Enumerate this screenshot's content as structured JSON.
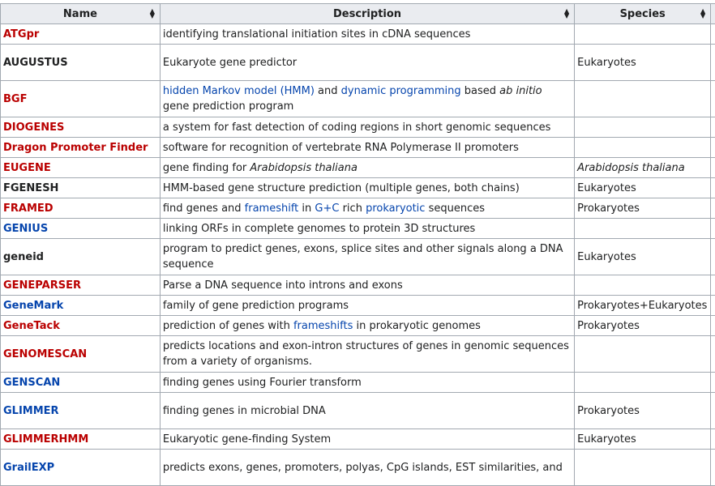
{
  "headers": {
    "name": "Name",
    "description": "Description",
    "species": "Species"
  },
  "rows": [
    {
      "name": "ATGpr",
      "color": "red",
      "desc": [
        {
          "t": "identifying translational initiation sites in cDNA sequences"
        }
      ],
      "species": "",
      "tall": false
    },
    {
      "name": "AUGUSTUS",
      "color": "black",
      "desc": [
        {
          "t": "Eukaryote gene predictor"
        }
      ],
      "species": "Eukaryotes",
      "tall": true
    },
    {
      "name": "BGF",
      "color": "red",
      "desc": [
        {
          "t": "hidden Markov model (HMM)",
          "link": true
        },
        {
          "t": " and "
        },
        {
          "t": "dynamic programming",
          "link": true
        },
        {
          "t": " based "
        },
        {
          "t": "ab initio",
          "italic": true
        },
        {
          "t": " gene prediction program"
        }
      ],
      "species": "",
      "tall": true
    },
    {
      "name": "DIOGENES",
      "color": "red",
      "desc": [
        {
          "t": "a system for fast detection of coding regions in short genomic sequences"
        }
      ],
      "species": "",
      "tall": false
    },
    {
      "name": "Dragon Promoter Finder",
      "color": "red",
      "desc": [
        {
          "t": "software for recognition of vertebrate RNA Polymerase II promoters"
        }
      ],
      "species": "",
      "tall": false
    },
    {
      "name": "EUGENE",
      "color": "red",
      "desc": [
        {
          "t": "gene finding for "
        },
        {
          "t": "Arabidopsis thaliana",
          "italic": true
        }
      ],
      "species": "Arabidopsis thaliana",
      "speciesItalic": true,
      "tall": false
    },
    {
      "name": "FGENESH",
      "color": "black",
      "desc": [
        {
          "t": "HMM-based gene structure prediction (multiple genes, both chains)"
        }
      ],
      "species": "Eukaryotes",
      "tall": false
    },
    {
      "name": "FRAMED",
      "color": "red",
      "desc": [
        {
          "t": "find genes and "
        },
        {
          "t": "frameshift",
          "link": true
        },
        {
          "t": " in "
        },
        {
          "t": "G+C",
          "link": true
        },
        {
          "t": " rich "
        },
        {
          "t": "prokaryotic",
          "link": true
        },
        {
          "t": " sequences"
        }
      ],
      "species": "Prokaryotes",
      "tall": false
    },
    {
      "name": "GENIUS",
      "color": "blue",
      "desc": [
        {
          "t": "linking ORFs in complete genomes to protein 3D structures"
        }
      ],
      "species": "",
      "tall": false
    },
    {
      "name": "geneid",
      "color": "black",
      "desc": [
        {
          "t": "program to predict genes, exons, splice sites and other signals along a DNA sequence"
        }
      ],
      "species": "Eukaryotes",
      "tall": true
    },
    {
      "name": "GENEPARSER",
      "color": "red",
      "desc": [
        {
          "t": "Parse a DNA sequence into introns and exons"
        }
      ],
      "species": "",
      "tall": false
    },
    {
      "name": "GeneMark",
      "color": "blue",
      "desc": [
        {
          "t": "family of gene prediction programs"
        }
      ],
      "species": "Prokaryotes+Eukaryotes",
      "tall": false
    },
    {
      "name": "GeneTack",
      "color": "red",
      "desc": [
        {
          "t": "prediction of genes with "
        },
        {
          "t": "frameshifts",
          "link": true
        },
        {
          "t": " in prokaryotic genomes"
        }
      ],
      "species": "Prokaryotes",
      "tall": false
    },
    {
      "name": "GENOMESCAN",
      "color": "red",
      "desc": [
        {
          "t": "predicts locations and exon-intron structures of genes in genomic sequences from a variety of organisms."
        }
      ],
      "species": "",
      "tall": true
    },
    {
      "name": "GENSCAN",
      "color": "blue",
      "desc": [
        {
          "t": "finding genes using Fourier transform"
        }
      ],
      "species": "",
      "tall": false
    },
    {
      "name": "GLIMMER",
      "color": "blue",
      "desc": [
        {
          "t": "finding genes in microbial DNA"
        }
      ],
      "species": "Prokaryotes",
      "tall": true
    },
    {
      "name": "GLIMMERHMM",
      "color": "red",
      "desc": [
        {
          "t": "Eukaryotic gene-finding System"
        }
      ],
      "species": "Eukaryotes",
      "tall": false
    },
    {
      "name": "GrailEXP",
      "color": "blue",
      "desc": [
        {
          "t": "predicts exons, genes, promoters, polyas, CpG islands, EST similarities, and"
        }
      ],
      "species": "",
      "tall": true
    }
  ]
}
